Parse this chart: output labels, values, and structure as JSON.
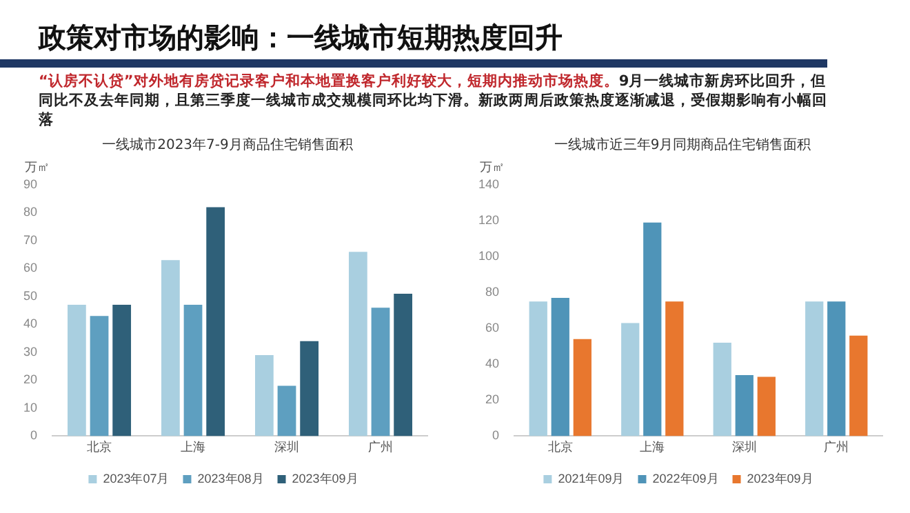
{
  "chart_data": [
    {
      "type": "bar",
      "title": "一线城市2023年7-9月商品住宅销售面积",
      "ylabel": "万㎡",
      "annotations": [
        "政策对市场的影响：一线城市短期热度回升",
        "“认房不认贷”对外地有房贷记录客户和本地置换客户利好较大，短期内推动市场热度。",
        "9月一线城市新房环比回升，但同比不及去年同期，且第三季度一线城市成交规模同环比均下滑。新政两周后政策热度逐渐减退，受假期影响有小幅回落"
      ],
      "categories": [
        "北京",
        "上海",
        "深圳",
        "广州"
      ],
      "series": [
        {
          "name": "2023年07月",
          "color": "#a9cfe0",
          "values": [
            47,
            63,
            29,
            66
          ]
        },
        {
          "name": "2023年08月",
          "color": "#5e9fc0",
          "values": [
            43,
            47,
            18,
            46
          ]
        },
        {
          "name": "2023年09月",
          "color": "#2f6079",
          "values": [
            47,
            82,
            34,
            51
          ]
        }
      ],
      "ylim": [
        0,
        90
      ],
      "yticks": [
        0,
        10,
        20,
        30,
        40,
        50,
        60,
        70,
        80,
        90
      ],
      "legend": "bottom"
    },
    {
      "type": "bar",
      "title": "一线城市近三年9月同期商品住宅销售面积",
      "ylabel": "万㎡",
      "categories": [
        "北京",
        "上海",
        "深圳",
        "广州"
      ],
      "series": [
        {
          "name": "2021年09月",
          "color": "#a9cfe0",
          "values": [
            75,
            63,
            52,
            75
          ]
        },
        {
          "name": "2022年09月",
          "color": "#4f94b8",
          "values": [
            77,
            119,
            34,
            75
          ]
        },
        {
          "name": "2023年09月",
          "color": "#e8772e",
          "values": [
            54,
            75,
            33,
            56
          ]
        }
      ],
      "ylim": [
        0,
        140
      ],
      "yticks": [
        0,
        20,
        40,
        60,
        80,
        100,
        120,
        140
      ],
      "legend": "bottom"
    }
  ]
}
